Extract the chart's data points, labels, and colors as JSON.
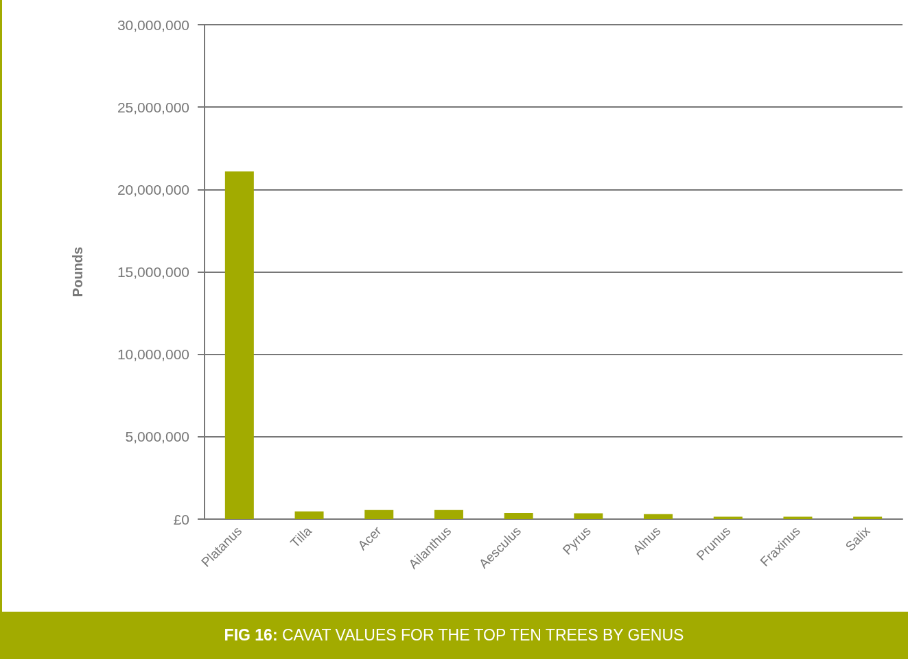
{
  "chart_data": {
    "type": "bar",
    "title": "FIG 16: CAVAT VALUES FOR THE TOP TEN TREES BY GENUS",
    "ylabel": "Pounds",
    "categories": [
      "Platanus",
      "Tilla",
      "Acer",
      "Ailanthus",
      "Aesculus",
      "Pyrus",
      "Alnus",
      "Prunus",
      "Fraxinus",
      "Salix"
    ],
    "values": [
      21100000,
      470000,
      550000,
      550000,
      370000,
      350000,
      300000,
      150000,
      150000,
      150000
    ],
    "color": "#a2ab00",
    "ylim": [
      0,
      30000000
    ],
    "yticks": [
      {
        "value": 0,
        "label": "£0"
      },
      {
        "value": 5000000,
        "label": "5,000,000"
      },
      {
        "value": 10000000,
        "label": "10,000,000"
      },
      {
        "value": 15000000,
        "label": "15,000,000"
      },
      {
        "value": 20000000,
        "label": "20,000,000"
      },
      {
        "value": 25000000,
        "label": "25,000,000"
      },
      {
        "value": 30000000,
        "label": "30,000,000"
      }
    ],
    "grid": "y"
  }
}
